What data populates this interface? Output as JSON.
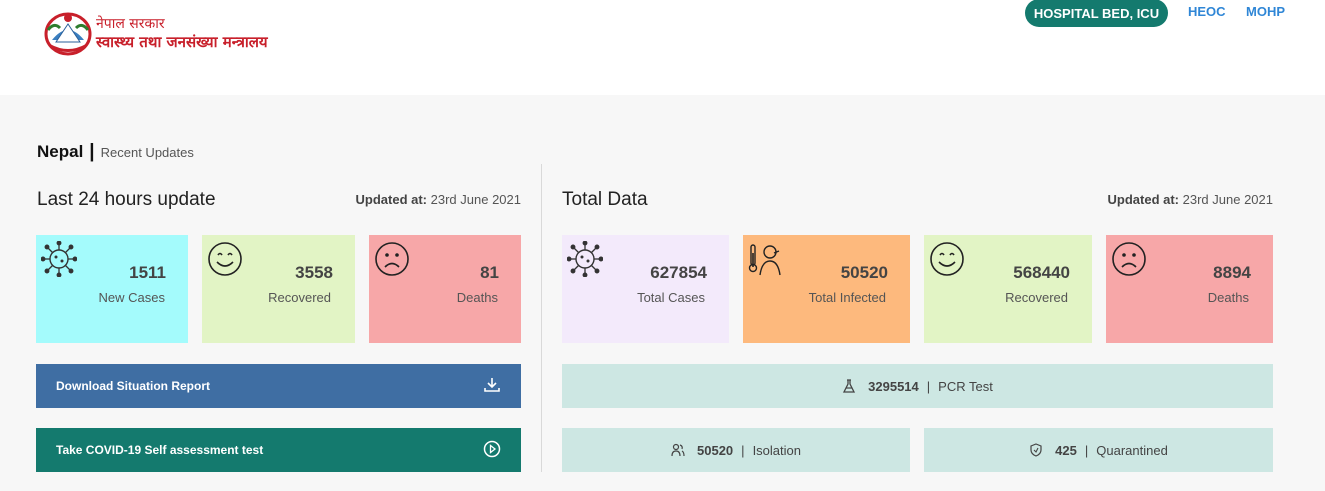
{
  "header": {
    "logo_line1": "नेपाल सरकार",
    "logo_line2": "स्वास्थ्य तथा जनसंख्या मन्त्रालय",
    "nav_pill": "HOSPITAL BED, ICU",
    "nav_heoc": "HEOC",
    "nav_mohp": "MOHP"
  },
  "breadcrumb": {
    "title": "Nepal",
    "separator": "|",
    "subtitle": "Recent Updates"
  },
  "last24": {
    "title": "Last 24 hours update",
    "updated_label": "Updated at:",
    "updated_value": "23rd June 2021",
    "cards": [
      {
        "value": "1511",
        "label": "New Cases",
        "icon": "virus-icon",
        "color": "#a4fbfc"
      },
      {
        "value": "3558",
        "label": "Recovered",
        "icon": "smiley-icon",
        "color": "#e2f4c5"
      },
      {
        "value": "81",
        "label": "Deaths",
        "icon": "sad-face-icon",
        "color": "#f7a7a8"
      }
    ]
  },
  "actions": {
    "download_report": "Download Situation Report",
    "self_assessment": "Take COVID-19 Self assessment test"
  },
  "total": {
    "title": "Total Data",
    "updated_label": "Updated at:",
    "updated_value": "23rd June 2021",
    "cards": [
      {
        "value": "627854",
        "label": "Total Cases",
        "icon": "virus-icon",
        "color": "#f3eafb"
      },
      {
        "value": "50520",
        "label": "Total Infected",
        "icon": "thermometer-person-icon",
        "color": "#fdb97d"
      },
      {
        "value": "568440",
        "label": "Recovered",
        "icon": "smiley-icon",
        "color": "#e2f4c5"
      },
      {
        "value": "8894",
        "label": "Deaths",
        "icon": "sad-face-icon",
        "color": "#f7a7a8"
      }
    ],
    "pcr": {
      "value": "3295514",
      "sep": "|",
      "label": "PCR Test",
      "icon": "flask-icon"
    },
    "isolation": {
      "value": "50520",
      "sep": "|",
      "label": "Isolation",
      "icon": "people-icon"
    },
    "quarantined": {
      "value": "425",
      "sep": "|",
      "label": "Quarantined",
      "icon": "shield-icon"
    }
  },
  "colors": {
    "brand_red": "#c8202b",
    "teal": "#147a6e",
    "link_blue": "#2f86d6",
    "download_blue": "#3f6ea3",
    "bar_teal_light": "#cde7e3"
  }
}
